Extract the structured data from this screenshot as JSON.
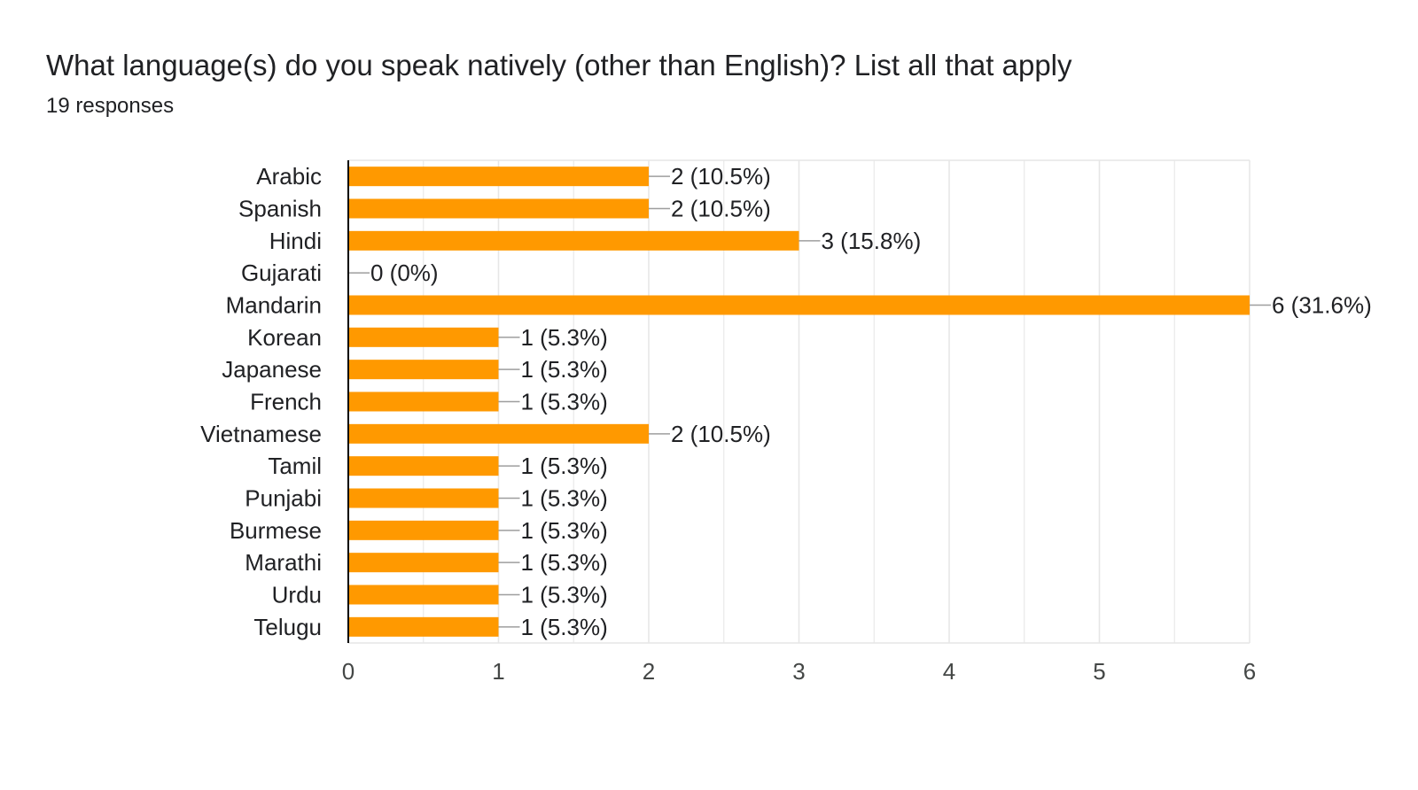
{
  "header": {
    "title": "What language(s) do you speak natively (other than English)? List all that apply",
    "response_count": "19 responses"
  },
  "colors": {
    "bar": "#ff9900",
    "grid": "#e6e6e6",
    "axis": "#000000",
    "connector": "#9e9e9e"
  },
  "chart_data": {
    "type": "bar",
    "orientation": "horizontal",
    "categories": [
      "Arabic",
      "Spanish",
      "Hindi",
      "Gujarati",
      "Mandarin",
      "Korean",
      "Japanese",
      "French",
      "Vietnamese",
      "Tamil",
      "Punjabi",
      "Burmese",
      "Marathi",
      "Urdu",
      "Telugu"
    ],
    "values": [
      2,
      2,
      3,
      0,
      6,
      1,
      1,
      1,
      2,
      1,
      1,
      1,
      1,
      1,
      1
    ],
    "data_labels": [
      "2 (10.5%)",
      "2 (10.5%)",
      "3 (15.8%)",
      "0 (0%)",
      "6 (31.6%)",
      "1 (5.3%)",
      "1 (5.3%)",
      "1 (5.3%)",
      "2 (10.5%)",
      "1 (5.3%)",
      "1 (5.3%)",
      "1 (5.3%)",
      "1 (5.3%)",
      "1 (5.3%)",
      "1 (5.3%)"
    ],
    "xlim": [
      0,
      6
    ],
    "x_ticks": [
      0,
      1,
      2,
      3,
      4,
      5,
      6
    ],
    "x_tick_labels": [
      "0",
      "1",
      "2",
      "3",
      "4",
      "5",
      "6"
    ],
    "grid": true,
    "legend": "none"
  }
}
